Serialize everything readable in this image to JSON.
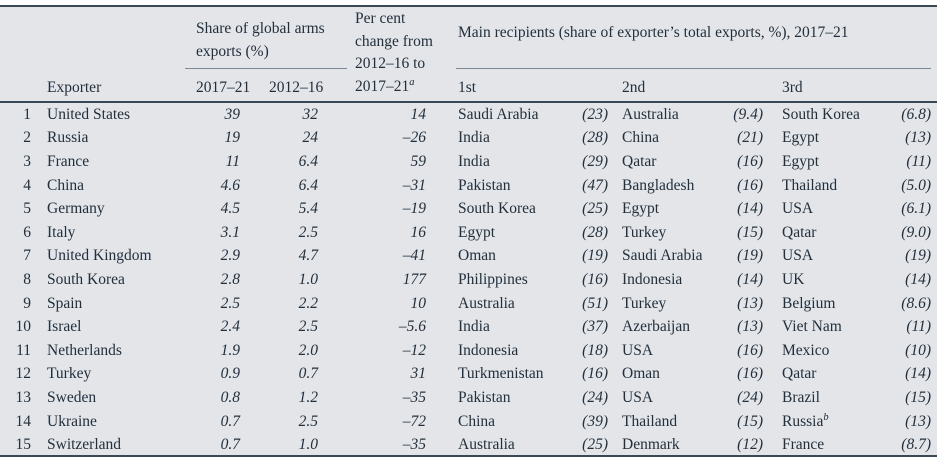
{
  "meta": {
    "background_color": "#e3e5e8",
    "text_color": "#222f3d",
    "rule_dark_color": "#3a4754",
    "rule_light_color": "#7e8997"
  },
  "table": {
    "header": {
      "exporter": "Exporter",
      "share_group": "Share of global arms exports (%)",
      "share_col_1": "2017–21",
      "share_col_2": "2012–16",
      "change_group": "Per cent change from 2012–16 to 2017–21",
      "change_footnote": "a",
      "recipients_group": "Main recipients (share of exporter’s total exports, %), 2017–21",
      "recipient_col_1": "1st",
      "recipient_col_2": "2nd",
      "recipient_col_3": "3rd"
    },
    "rows": [
      {
        "rank": "1",
        "exporter": "United States",
        "share_2017_21": "39",
        "share_2012_16": "32",
        "change": "14",
        "r1_name": "Saudi Arabia",
        "r1_share": "(23)",
        "r2_name": "Australia",
        "r2_share": "(9.4)",
        "r3_name": "South Korea",
        "r3_share": "(6.8)"
      },
      {
        "rank": "2",
        "exporter": "Russia",
        "share_2017_21": "19",
        "share_2012_16": "24",
        "change": "–26",
        "r1_name": "India",
        "r1_share": "(28)",
        "r2_name": "China",
        "r2_share": "(21)",
        "r3_name": "Egypt",
        "r3_share": "(13)"
      },
      {
        "rank": "3",
        "exporter": "France",
        "share_2017_21": "11",
        "share_2012_16": "6.4",
        "change": "59",
        "r1_name": "India",
        "r1_share": "(29)",
        "r2_name": "Qatar",
        "r2_share": "(16)",
        "r3_name": "Egypt",
        "r3_share": "(11)"
      },
      {
        "rank": "4",
        "exporter": "China",
        "share_2017_21": "4.6",
        "share_2012_16": "6.4",
        "change": "–31",
        "r1_name": "Pakistan",
        "r1_share": "(47)",
        "r2_name": "Bangladesh",
        "r2_share": "(16)",
        "r3_name": "Thailand",
        "r3_share": "(5.0)"
      },
      {
        "rank": "5",
        "exporter": "Germany",
        "share_2017_21": "4.5",
        "share_2012_16": "5.4",
        "change": "–19",
        "r1_name": "South Korea",
        "r1_share": "(25)",
        "r2_name": "Egypt",
        "r2_share": "(14)",
        "r3_name": "USA",
        "r3_share": "(6.1)"
      },
      {
        "rank": "6",
        "exporter": "Italy",
        "share_2017_21": "3.1",
        "share_2012_16": "2.5",
        "change": "16",
        "r1_name": "Egypt",
        "r1_share": "(28)",
        "r2_name": "Turkey",
        "r2_share": "(15)",
        "r3_name": "Qatar",
        "r3_share": "(9.0)"
      },
      {
        "rank": "7",
        "exporter": "United Kingdom",
        "share_2017_21": "2.9",
        "share_2012_16": "4.7",
        "change": "–41",
        "r1_name": "Oman",
        "r1_share": "(19)",
        "r2_name": "Saudi Arabia",
        "r2_share": "(19)",
        "r3_name": "USA",
        "r3_share": "(19)"
      },
      {
        "rank": "8",
        "exporter": "South Korea",
        "share_2017_21": "2.8",
        "share_2012_16": "1.0",
        "change": "177",
        "r1_name": "Philippines",
        "r1_share": "(16)",
        "r2_name": "Indonesia",
        "r2_share": "(14)",
        "r3_name": "UK",
        "r3_share": "(14)"
      },
      {
        "rank": "9",
        "exporter": "Spain",
        "share_2017_21": "2.5",
        "share_2012_16": "2.2",
        "change": "10",
        "r1_name": "Australia",
        "r1_share": "(51)",
        "r2_name": "Turkey",
        "r2_share": "(13)",
        "r3_name": "Belgium",
        "r3_share": "(8.6)"
      },
      {
        "rank": "10",
        "exporter": "Israel",
        "share_2017_21": "2.4",
        "share_2012_16": "2.5",
        "change": "–5.6",
        "r1_name": "India",
        "r1_share": "(37)",
        "r2_name": "Azerbaijan",
        "r2_share": "(13)",
        "r3_name": "Viet Nam",
        "r3_share": "(11)"
      },
      {
        "rank": "11",
        "exporter": "Netherlands",
        "share_2017_21": "1.9",
        "share_2012_16": "2.0",
        "change": "–12",
        "r1_name": "Indonesia",
        "r1_share": "(18)",
        "r2_name": "USA",
        "r2_share": "(16)",
        "r3_name": "Mexico",
        "r3_share": "(10)"
      },
      {
        "rank": "12",
        "exporter": "Turkey",
        "share_2017_21": "0.9",
        "share_2012_16": "0.7",
        "change": "31",
        "r1_name": "Turkmenistan",
        "r1_share": "(16)",
        "r2_name": "Oman",
        "r2_share": "(16)",
        "r3_name": "Qatar",
        "r3_share": "(14)"
      },
      {
        "rank": "13",
        "exporter": "Sweden",
        "share_2017_21": "0.8",
        "share_2012_16": "1.2",
        "change": "–35",
        "r1_name": "Pakistan",
        "r1_share": "(24)",
        "r2_name": "USA",
        "r2_share": "(24)",
        "r3_name": "Brazil",
        "r3_share": "(15)"
      },
      {
        "rank": "14",
        "exporter": "Ukraine",
        "share_2017_21": "0.7",
        "share_2012_16": "2.5",
        "change": "–72",
        "r1_name": "China",
        "r1_share": "(39)",
        "r2_name": "Thailand",
        "r2_share": "(15)",
        "r3_name": "Russia",
        "r3_footnote": "b",
        "r3_share": "(13)"
      },
      {
        "rank": "15",
        "exporter": "Switzerland",
        "share_2017_21": "0.7",
        "share_2012_16": "1.0",
        "change": "–35",
        "r1_name": "Australia",
        "r1_share": "(25)",
        "r2_name": "Denmark",
        "r2_share": "(12)",
        "r3_name": "France",
        "r3_share": "(8.7)"
      }
    ]
  }
}
